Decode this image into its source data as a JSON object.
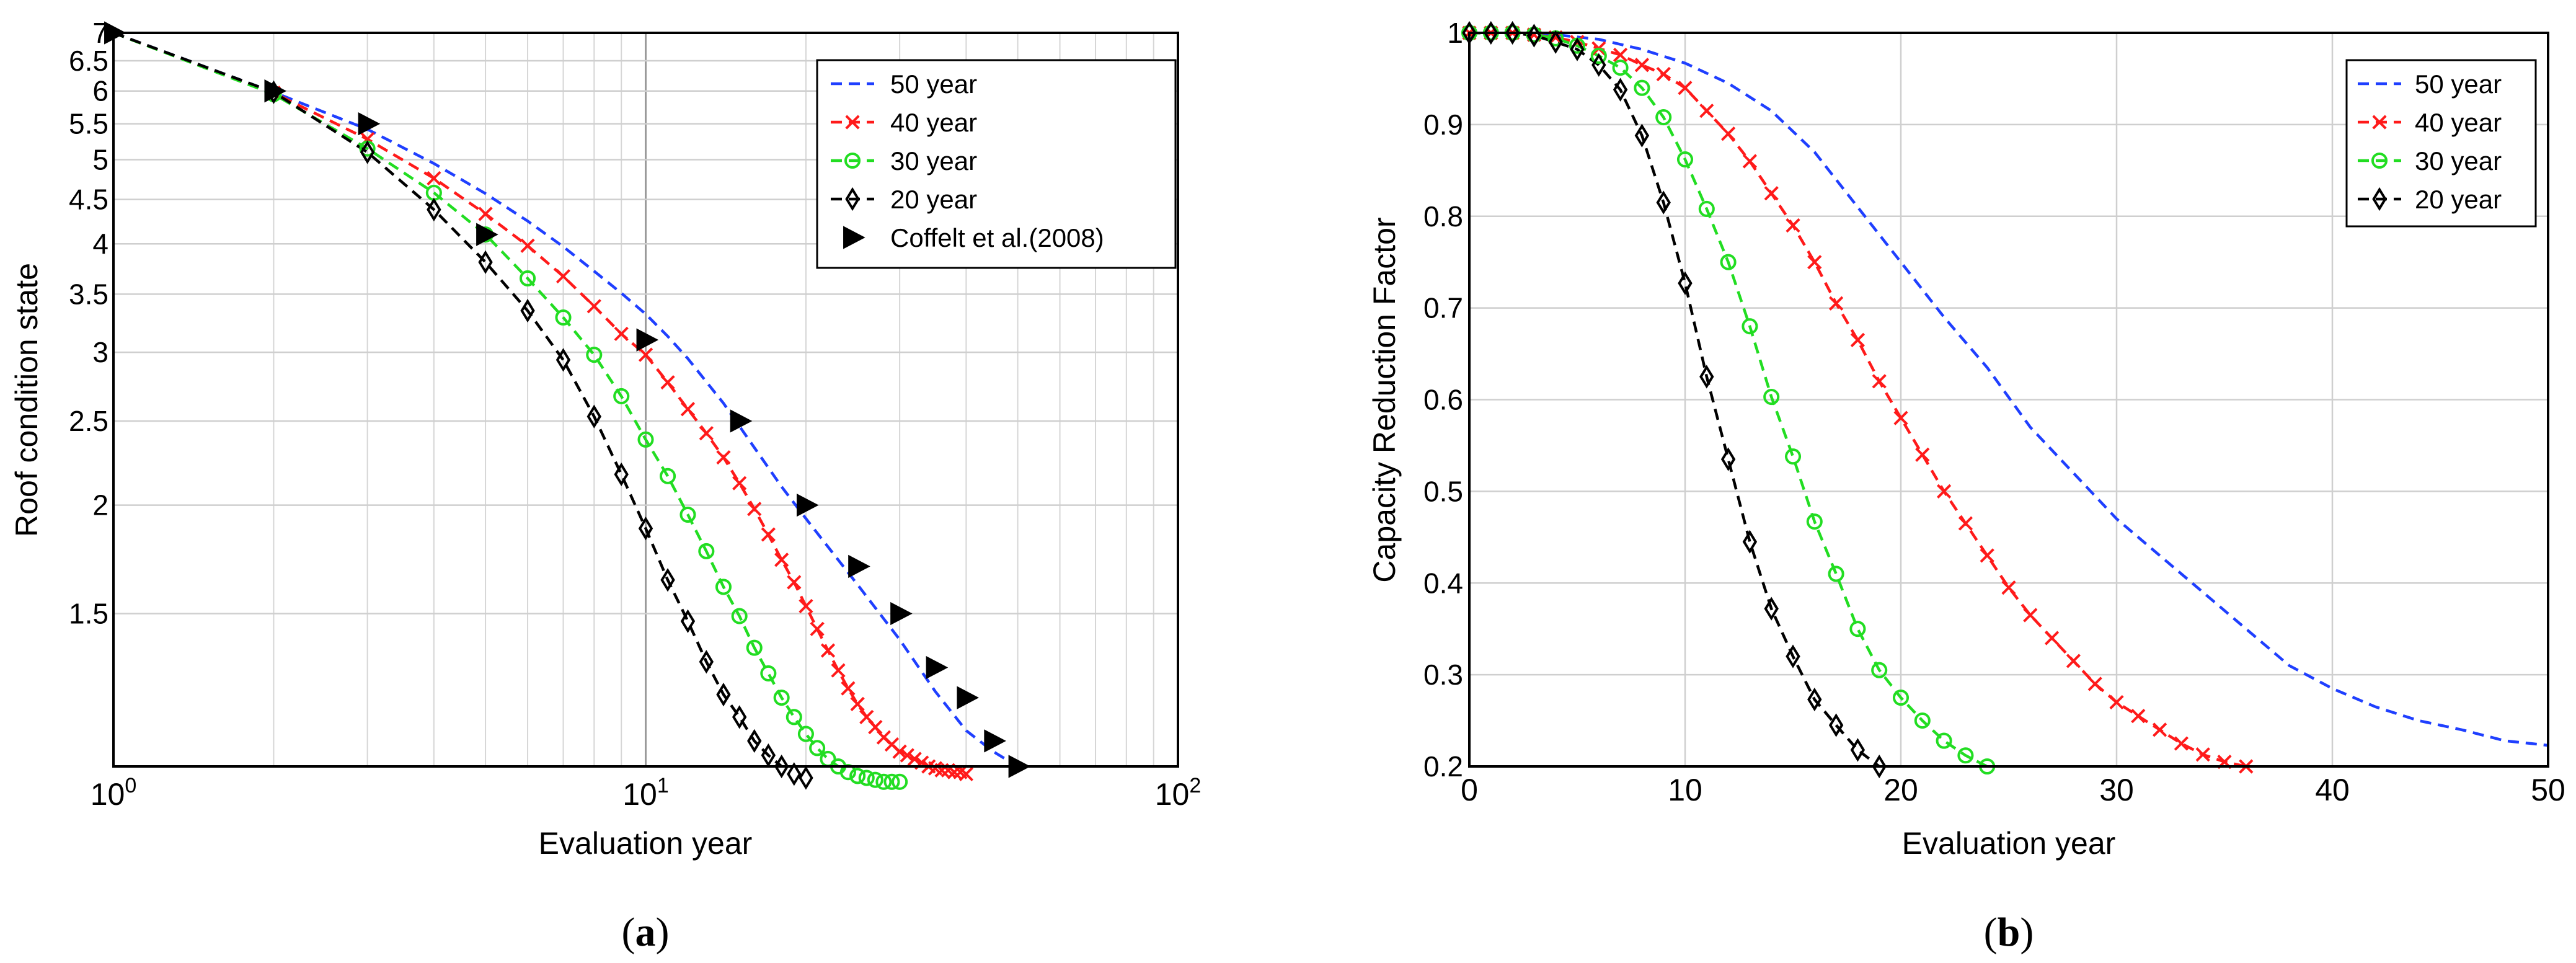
{
  "figure": {
    "caption_a": "(a)",
    "caption_b": "(b)",
    "caption_a_letter": "a",
    "caption_b_letter": "b"
  },
  "chart_data": [
    {
      "id": "a",
      "type": "line",
      "xscale": "log",
      "yscale": "log",
      "xlim": [
        1,
        100
      ],
      "ylim": [
        1.0,
        7
      ],
      "xlabel": "Evaluation year",
      "ylabel": "Roof condition state",
      "xticks": [
        {
          "value": 1,
          "base": "10",
          "exp": "0"
        },
        {
          "value": 10,
          "base": "10",
          "exp": "1"
        },
        {
          "value": 100,
          "base": "10",
          "exp": "2"
        }
      ],
      "yticks": [
        "1.5",
        "2",
        "2.5",
        "3",
        "3.5",
        "4",
        "4.5",
        "5",
        "5.5",
        "6",
        "6.5",
        "7"
      ],
      "legend_position": "top-right",
      "series": [
        {
          "name": "50 year",
          "color": "#1f3fff",
          "style": "dash",
          "marker": "none",
          "x": [
            1,
            2,
            3,
            4,
            5,
            6,
            7,
            8,
            9,
            10,
            11,
            12,
            14,
            16,
            18,
            20,
            25,
            30,
            35,
            40,
            45,
            50
          ],
          "y": [
            7.0,
            5.98,
            5.42,
            4.95,
            4.57,
            4.25,
            3.97,
            3.72,
            3.51,
            3.32,
            3.13,
            2.95,
            2.62,
            2.33,
            2.1,
            1.93,
            1.62,
            1.4,
            1.22,
            1.1,
            1.04,
            1.0
          ]
        },
        {
          "name": "40 year",
          "color": "#ff1a1a",
          "style": "dash",
          "marker": "x",
          "x": [
            1,
            2,
            3,
            4,
            5,
            6,
            7,
            8,
            9,
            10,
            11,
            12,
            13,
            14,
            15,
            16,
            17,
            18,
            19,
            20,
            21,
            22,
            23,
            24,
            25,
            26,
            27,
            28,
            29,
            30,
            31,
            32,
            33,
            34,
            35,
            36,
            37,
            38,
            39,
            40
          ],
          "y": [
            7.0,
            5.97,
            5.28,
            4.76,
            4.33,
            3.98,
            3.67,
            3.39,
            3.15,
            2.98,
            2.77,
            2.58,
            2.42,
            2.27,
            2.12,
            1.98,
            1.85,
            1.73,
            1.63,
            1.53,
            1.44,
            1.36,
            1.29,
            1.23,
            1.18,
            1.14,
            1.11,
            1.08,
            1.06,
            1.04,
            1.03,
            1.02,
            1.01,
            1.0,
            0.995,
            0.99,
            0.99,
            0.985,
            0.985,
            0.98
          ]
        },
        {
          "name": "30 year",
          "color": "#22dd22",
          "style": "dash",
          "marker": "o",
          "x": [
            1,
            2,
            3,
            4,
            5,
            6,
            7,
            8,
            9,
            10,
            11,
            12,
            13,
            14,
            15,
            16,
            17,
            18,
            19,
            20,
            21,
            22,
            23,
            24,
            25,
            26,
            27,
            28,
            29,
            30
          ],
          "y": [
            7.0,
            5.95,
            5.15,
            4.58,
            4.1,
            3.65,
            3.29,
            2.98,
            2.67,
            2.38,
            2.16,
            1.95,
            1.77,
            1.61,
            1.49,
            1.37,
            1.28,
            1.2,
            1.14,
            1.09,
            1.05,
            1.02,
            1.0,
            0.985,
            0.975,
            0.97,
            0.965,
            0.96,
            0.96,
            0.96
          ]
        },
        {
          "name": "20 year",
          "color": "#000000",
          "style": "dash",
          "marker": "diamond",
          "x": [
            1,
            2,
            3,
            4,
            5,
            6,
            7,
            8,
            9,
            10,
            11,
            12,
            13,
            14,
            15,
            16,
            17,
            18,
            19,
            20
          ],
          "y": [
            7.0,
            5.98,
            5.1,
            4.38,
            3.81,
            3.35,
            2.94,
            2.53,
            2.17,
            1.88,
            1.64,
            1.47,
            1.32,
            1.21,
            1.14,
            1.07,
            1.03,
            1.0,
            0.98,
            0.97
          ]
        },
        {
          "name": "Coffelt et al.(2008)",
          "color": "#000000",
          "style": "none",
          "marker": "triangle-right",
          "x": [
            1,
            2,
            3,
            5,
            10,
            15,
            20,
            25,
            30,
            35,
            40,
            45,
            50
          ],
          "y": [
            7.0,
            6.0,
            5.5,
            4.1,
            3.1,
            2.5,
            2.0,
            1.7,
            1.5,
            1.3,
            1.2,
            1.07,
            1.0
          ]
        }
      ]
    },
    {
      "id": "b",
      "type": "line",
      "xscale": "linear",
      "yscale": "linear",
      "xlim": [
        0,
        50
      ],
      "ylim": [
        0.2,
        1.0
      ],
      "xlabel": "Evaluation year",
      "ylabel": "Capacity Reduction Factor",
      "xticks": [
        "0",
        "10",
        "20",
        "30",
        "40",
        "50"
      ],
      "yticks": [
        "0.2",
        "0.3",
        "0.4",
        "0.5",
        "0.6",
        "0.7",
        "0.8",
        "0.9",
        "1"
      ],
      "legend_position": "top-right",
      "series": [
        {
          "name": "50 year",
          "color": "#1f3fff",
          "style": "dash",
          "marker": "none",
          "x": [
            0,
            2,
            4,
            6,
            8,
            10,
            12,
            14,
            16,
            18,
            20,
            22,
            24,
            26,
            28,
            30,
            32,
            34,
            36,
            38,
            40,
            42,
            44,
            46,
            48,
            50
          ],
          "y": [
            1.0,
            1.0,
            0.998,
            0.993,
            0.982,
            0.967,
            0.945,
            0.915,
            0.87,
            0.81,
            0.75,
            0.69,
            0.635,
            0.57,
            0.52,
            0.47,
            0.43,
            0.39,
            0.35,
            0.31,
            0.285,
            0.265,
            0.25,
            0.24,
            0.228,
            0.223
          ]
        },
        {
          "name": "40 year",
          "color": "#ff1a1a",
          "style": "dash",
          "marker": "x",
          "x": [
            0,
            1,
            2,
            3,
            4,
            5,
            6,
            7,
            8,
            9,
            10,
            11,
            12,
            13,
            14,
            15,
            16,
            17,
            18,
            19,
            20,
            21,
            22,
            23,
            24,
            25,
            26,
            27,
            28,
            29,
            30,
            31,
            32,
            33,
            34,
            35,
            36
          ],
          "y": [
            1.0,
            1.0,
            1.0,
            0.998,
            0.995,
            0.99,
            0.983,
            0.976,
            0.965,
            0.955,
            0.94,
            0.915,
            0.89,
            0.86,
            0.825,
            0.79,
            0.75,
            0.705,
            0.665,
            0.62,
            0.58,
            0.54,
            0.5,
            0.465,
            0.43,
            0.395,
            0.365,
            0.34,
            0.315,
            0.29,
            0.27,
            0.255,
            0.24,
            0.225,
            0.213,
            0.205,
            0.2
          ]
        },
        {
          "name": "30 year",
          "color": "#22dd22",
          "style": "dash",
          "marker": "o",
          "x": [
            0,
            1,
            2,
            3,
            4,
            5,
            6,
            7,
            8,
            9,
            10,
            11,
            12,
            13,
            14,
            15,
            16,
            17,
            18,
            19,
            20,
            21,
            22,
            23,
            24
          ],
          "y": [
            1.0,
            1.0,
            1.0,
            0.998,
            0.994,
            0.986,
            0.975,
            0.962,
            0.94,
            0.908,
            0.862,
            0.808,
            0.75,
            0.68,
            0.603,
            0.538,
            0.467,
            0.41,
            0.35,
            0.305,
            0.275,
            0.25,
            0.228,
            0.212,
            0.2
          ]
        },
        {
          "name": "20 year",
          "color": "#000000",
          "style": "dash",
          "marker": "diamond",
          "x": [
            0,
            1,
            2,
            3,
            4,
            5,
            6,
            7,
            8,
            9,
            10,
            11,
            12,
            13,
            14,
            15,
            16,
            17,
            18,
            19
          ],
          "y": [
            1.0,
            1.0,
            1.0,
            0.997,
            0.99,
            0.982,
            0.965,
            0.938,
            0.888,
            0.815,
            0.727,
            0.625,
            0.535,
            0.445,
            0.372,
            0.32,
            0.273,
            0.245,
            0.218,
            0.2
          ]
        }
      ]
    }
  ]
}
